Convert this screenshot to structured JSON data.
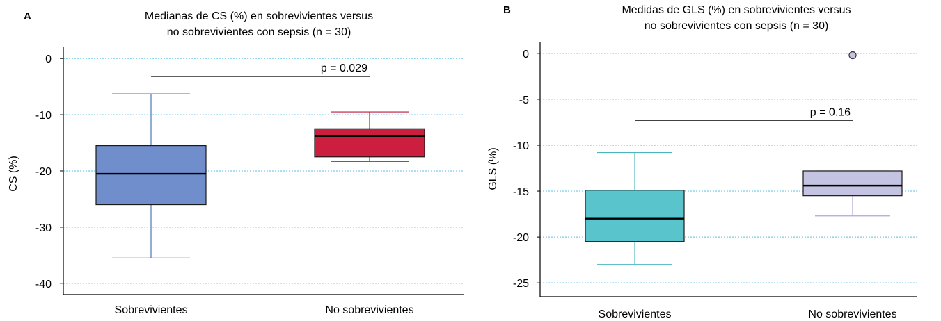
{
  "chart_data": [
    {
      "type": "box",
      "panel_label": "A",
      "title_lines": [
        "Medianas de CS (%) en sobrevivientes versus",
        "no sobrevivientes con sepsis (n = 30)"
      ],
      "xlabel": "",
      "ylabel": "CS (%)",
      "ylim": [
        -42,
        2
      ],
      "yticks": [
        0,
        -10,
        -20,
        -30,
        -40
      ],
      "ytick_labels": [
        "0",
        "-10",
        "-20",
        "-30",
        "-40"
      ],
      "grid": true,
      "categories": [
        "Sobrevivientes",
        "No sobrevivientes"
      ],
      "boxes": [
        {
          "category": "Sobrevivientes",
          "whisker_low": -35.5,
          "q1": -26,
          "median": -20.5,
          "q3": -15.5,
          "whisker_high": -6.3,
          "fill": "#6f8ecb",
          "stroke": "#4a78b5",
          "outliers": []
        },
        {
          "category": "No sobrevivientes",
          "whisker_low": -18.3,
          "q1": -17.5,
          "median": -13.8,
          "q3": -12.5,
          "whisker_high": -9.5,
          "fill": "#cc1f40",
          "stroke": "#c0183a",
          "outliers": []
        }
      ],
      "annotation": {
        "text": "p = 0.029",
        "y": -3.2,
        "from": "Sobrevivientes",
        "to": "No sobrevivientes"
      }
    },
    {
      "type": "box",
      "panel_label": "B",
      "title_lines": [
        "Medidas de GLS (%) en sobrevivientes versus",
        "no sobrevivientes con sepsis (n = 30)"
      ],
      "xlabel": "",
      "ylabel": "GLS (%)",
      "ylim": [
        -26.5,
        1.2
      ],
      "yticks": [
        0,
        -5,
        -10,
        -15,
        -20,
        -25
      ],
      "ytick_labels": [
        "0",
        "-5",
        "-10",
        "-15",
        "-20",
        "-25"
      ],
      "grid": true,
      "categories": [
        "Sobrevivientes",
        "No sobrevivientes"
      ],
      "boxes": [
        {
          "category": "Sobrevivientes",
          "whisker_low": -23,
          "q1": -20.5,
          "median": -18,
          "q3": -14.9,
          "whisker_high": -10.8,
          "fill": "#5ac4cd",
          "stroke": "#4fb5bd",
          "outliers": []
        },
        {
          "category": "No sobrevivientes",
          "whisker_low": -17.7,
          "q1": -15.5,
          "median": -14.4,
          "q3": -12.8,
          "whisker_high": -12.8,
          "fill": "#c4c3e2",
          "stroke": "#aaa9d0",
          "outliers": [
            -0.2
          ]
        }
      ],
      "annotation": {
        "text": "p = 0.16",
        "y": -7.3,
        "from": "Sobrevivientes",
        "to": "No sobrevivientes"
      }
    }
  ],
  "colors": {
    "grid": "#55bfe8",
    "axis": "#000000",
    "median": "#000000"
  }
}
